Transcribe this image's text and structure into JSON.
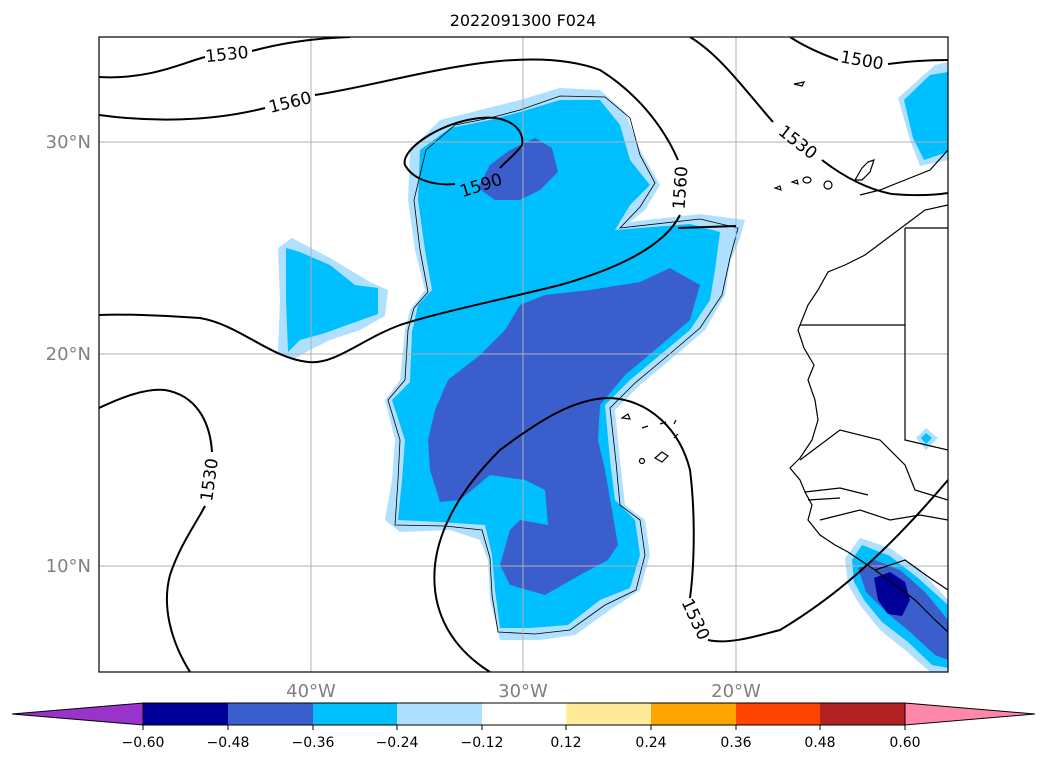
{
  "title": "2022091300 F024",
  "axes": {
    "lat_labels": [
      "30°N",
      "20°N",
      "10°N"
    ],
    "lon_labels": [
      "40°W",
      "30°W",
      "20°W"
    ]
  },
  "contour_labels": [
    "1530",
    "1560",
    "1500",
    "1530",
    "1590",
    "1560",
    "1530",
    "1530"
  ],
  "colorbar": {
    "ticks": [
      "−0.60",
      "−0.48",
      "−0.36",
      "−0.24",
      "−0.12",
      "0.12",
      "0.24",
      "0.36",
      "0.48",
      "0.60"
    ],
    "colors": [
      "#9933cc",
      "#000099",
      "#3a5fcd",
      "#00bfff",
      "#b0e0ff",
      "#ffffff",
      "#ffeb99",
      "#ffa500",
      "#ff4500",
      "#b22222",
      "#ff88aa"
    ]
  },
  "colors": {
    "shade_light": "#b0e0ff",
    "shade_mid": "#00bfff",
    "shade_strong": "#3a5fcd",
    "shade_extreme": "#000099",
    "contour": "#000000",
    "grid": "#b0b0b0"
  }
}
